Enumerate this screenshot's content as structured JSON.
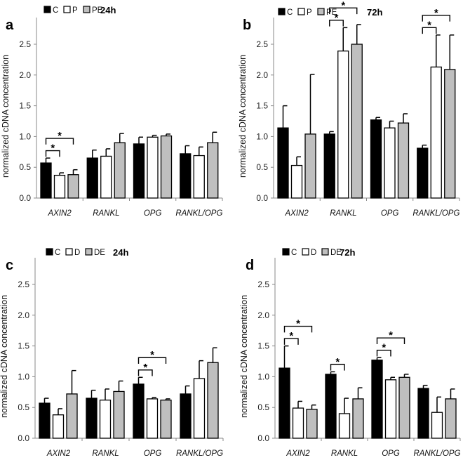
{
  "chart_data": [
    {
      "type": "bar",
      "panel": "a",
      "title": "24h",
      "ylabel": "normalized cDNA concentration",
      "ylim": [
        0,
        2.5
      ],
      "yticks": [
        "0.0",
        "0.5",
        "1.0",
        "1.5",
        "2.0",
        "2.5"
      ],
      "categories": [
        "AXIN2",
        "RANKL",
        "OPG",
        "RANKL/OPG"
      ],
      "legend": [
        "C",
        "P",
        "PE"
      ],
      "series": [
        {
          "name": "C",
          "color": "#000000",
          "values": [
            0.57,
            0.65,
            0.88,
            0.72
          ],
          "errors": [
            0.08,
            0.13,
            0.11,
            0.13
          ]
        },
        {
          "name": "P",
          "color": "#ffffff",
          "values": [
            0.37,
            0.68,
            0.99,
            0.69
          ],
          "errors": [
            0.04,
            0.12,
            0.03,
            0.14
          ]
        },
        {
          "name": "PE",
          "color": "#bfbfbf",
          "values": [
            0.38,
            0.9,
            1.01,
            0.9
          ],
          "errors": [
            0.08,
            0.15,
            0.03,
            0.17
          ]
        }
      ],
      "significance": [
        {
          "category": 0,
          "from": 0,
          "to": 1,
          "label": "*"
        },
        {
          "category": 0,
          "from": 0,
          "to": 2,
          "label": "*"
        }
      ]
    },
    {
      "type": "bar",
      "panel": "b",
      "title": "72h",
      "ylabel": "normalized cDNA concentration",
      "ylim": [
        0,
        2.5
      ],
      "yticks": [
        "0.0",
        "0.5",
        "1.0",
        "1.5",
        "2.0",
        "2.5"
      ],
      "categories": [
        "AXIN2",
        "RANKL",
        "OPG",
        "RANKL/OPG"
      ],
      "legend": [
        "C",
        "P",
        "PE"
      ],
      "series": [
        {
          "name": "C",
          "color": "#000000",
          "values": [
            1.14,
            1.04,
            1.27,
            0.81
          ],
          "errors": [
            0.36,
            0.04,
            0.04,
            0.05
          ]
        },
        {
          "name": "P",
          "color": "#ffffff",
          "values": [
            0.53,
            2.39,
            1.14,
            2.13
          ],
          "errors": [
            0.14,
            0.38,
            0.11,
            0.52
          ]
        },
        {
          "name": "PE",
          "color": "#bfbfbf",
          "values": [
            1.04,
            2.5,
            1.22,
            2.09
          ],
          "errors": [
            0.97,
            0.32,
            0.15,
            0.56
          ]
        }
      ],
      "significance": [
        {
          "category": 1,
          "from": 0,
          "to": 1,
          "label": "*"
        },
        {
          "category": 1,
          "from": 0,
          "to": 2,
          "label": "*"
        },
        {
          "category": 3,
          "from": 0,
          "to": 1,
          "label": "*"
        },
        {
          "category": 3,
          "from": 0,
          "to": 2,
          "label": "*"
        }
      ]
    },
    {
      "type": "bar",
      "panel": "c",
      "title": "24h",
      "ylabel": "normalized cDNA concentration",
      "ylim": [
        0,
        2.5
      ],
      "yticks": [
        "0.0",
        "0.5",
        "1.0",
        "1.5",
        "2.0",
        "2.5"
      ],
      "categories": [
        "AXIN2",
        "RANKL",
        "OPG",
        "RANKL/OPG"
      ],
      "legend": [
        "C",
        "D",
        "DE"
      ],
      "series": [
        {
          "name": "C",
          "color": "#000000",
          "values": [
            0.57,
            0.65,
            0.88,
            0.72
          ],
          "errors": [
            0.08,
            0.13,
            0.11,
            0.13
          ]
        },
        {
          "name": "D",
          "color": "#ffffff",
          "values": [
            0.38,
            0.62,
            0.64,
            0.97
          ],
          "errors": [
            0.1,
            0.18,
            0.02,
            0.29
          ]
        },
        {
          "name": "DE",
          "color": "#bfbfbf",
          "values": [
            0.72,
            0.76,
            0.62,
            1.23
          ],
          "errors": [
            0.38,
            0.17,
            0.02,
            0.24
          ]
        }
      ],
      "significance": [
        {
          "category": 2,
          "from": 0,
          "to": 1,
          "label": "*"
        },
        {
          "category": 2,
          "from": 0,
          "to": 2,
          "label": "*"
        }
      ]
    },
    {
      "type": "bar",
      "panel": "d",
      "title": "72h",
      "ylabel": "normalized cDNA concentration",
      "ylim": [
        0,
        2.5
      ],
      "yticks": [
        "0.0",
        "0.5",
        "1.0",
        "1.5",
        "2.0",
        "2.5"
      ],
      "categories": [
        "AXIN2",
        "RANKL",
        "OPG",
        "RANKL/OPG"
      ],
      "legend": [
        "C",
        "D",
        "DE"
      ],
      "series": [
        {
          "name": "C",
          "color": "#000000",
          "values": [
            1.14,
            1.04,
            1.27,
            0.81
          ],
          "errors": [
            0.36,
            0.04,
            0.04,
            0.05
          ]
        },
        {
          "name": "D",
          "color": "#ffffff",
          "values": [
            0.49,
            0.4,
            0.95,
            0.42
          ],
          "errors": [
            0.11,
            0.25,
            0.04,
            0.25
          ]
        },
        {
          "name": "DE",
          "color": "#bfbfbf",
          "values": [
            0.47,
            0.64,
            0.99,
            0.64
          ],
          "errors": [
            0.07,
            0.18,
            0.05,
            0.16
          ]
        }
      ],
      "significance": [
        {
          "category": 0,
          "from": 0,
          "to": 1,
          "label": "*"
        },
        {
          "category": 0,
          "from": 0,
          "to": 2,
          "label": "*"
        },
        {
          "category": 1,
          "from": 0,
          "to": 1,
          "label": "*"
        },
        {
          "category": 2,
          "from": 0,
          "to": 1,
          "label": "*"
        },
        {
          "category": 2,
          "from": 0,
          "to": 2,
          "label": "*"
        }
      ]
    }
  ]
}
